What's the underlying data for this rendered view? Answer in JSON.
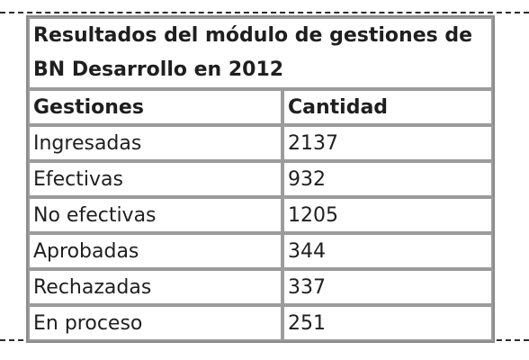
{
  "table": {
    "title": "Resultados del módulo de gestiones de BN Desarrollo en 2012",
    "headers": [
      "Gestiones",
      "Cantidad"
    ],
    "rows": [
      [
        "Ingresadas",
        "2137"
      ],
      [
        "Efectivas",
        "932"
      ],
      [
        "No efectivas",
        "1205"
      ],
      [
        "Aprobadas",
        "344"
      ],
      [
        "Rechazadas",
        "337"
      ],
      [
        "En proceso",
        "251"
      ]
    ]
  }
}
